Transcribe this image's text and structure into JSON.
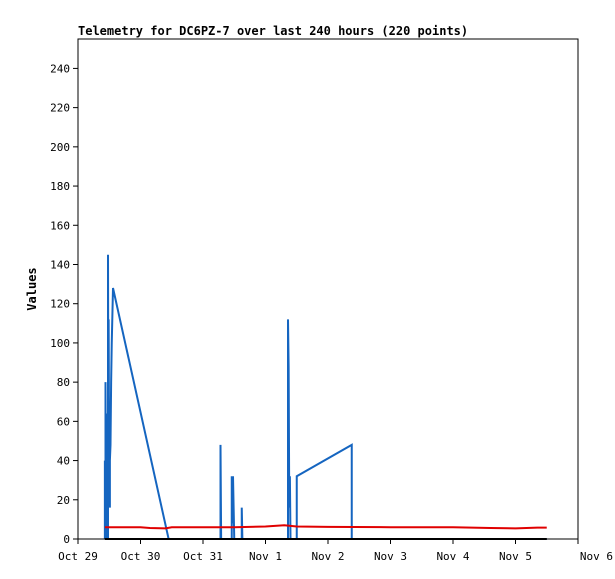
{
  "chart_data": {
    "type": "line",
    "title": "Telemetry for DC6PZ-7 over last 240 hours (220 points)",
    "ylabel": "Values",
    "xlabel": "",
    "xlim": [
      0,
      8
    ],
    "ylim": [
      0,
      255
    ],
    "x_ticks": [
      {
        "value": 0,
        "label": "Oct 29"
      },
      {
        "value": 1,
        "label": "Oct 30"
      },
      {
        "value": 2,
        "label": "Oct 31"
      },
      {
        "value": 3,
        "label": "Nov 1"
      },
      {
        "value": 4,
        "label": "Nov 2"
      },
      {
        "value": 5,
        "label": "Nov 3"
      },
      {
        "value": 6,
        "label": "Nov 4"
      },
      {
        "value": 7,
        "label": "Nov 5"
      },
      {
        "value": 8,
        "label": "Nov 6"
      }
    ],
    "y_ticks": [
      0,
      20,
      40,
      60,
      80,
      100,
      120,
      140,
      160,
      180,
      200,
      220,
      240
    ],
    "grid": false,
    "series": [
      {
        "color": "#1565c0",
        "points": [
          [
            0.43,
            0
          ],
          [
            0.43,
            40
          ],
          [
            0.44,
            0
          ],
          [
            0.44,
            80
          ],
          [
            0.45,
            0
          ],
          [
            0.45,
            64
          ],
          [
            0.46,
            0
          ],
          [
            0.46,
            40
          ],
          [
            0.47,
            0
          ],
          [
            0.47,
            64
          ],
          [
            0.48,
            0
          ],
          [
            0.48,
            145
          ],
          [
            0.49,
            16
          ],
          [
            0.49,
            112
          ],
          [
            0.5,
            24
          ],
          [
            0.5,
            48
          ],
          [
            0.51,
            16
          ],
          [
            0.51,
            40
          ],
          [
            0.52,
            48
          ],
          [
            0.53,
            80
          ],
          [
            0.54,
            100
          ],
          [
            0.56,
            128
          ],
          [
            1.45,
            0
          ],
          [
            2.28,
            0
          ],
          [
            2.28,
            48
          ],
          [
            2.29,
            0
          ],
          [
            2.46,
            0
          ],
          [
            2.46,
            32
          ],
          [
            2.48,
            8
          ],
          [
            2.48,
            32
          ],
          [
            2.5,
            0
          ],
          [
            2.62,
            0
          ],
          [
            2.62,
            16
          ],
          [
            2.63,
            0
          ],
          [
            3.36,
            0
          ],
          [
            3.36,
            112
          ],
          [
            3.37,
            88
          ],
          [
            3.38,
            16
          ],
          [
            3.39,
            32
          ],
          [
            3.4,
            0
          ],
          [
            3.5,
            0
          ],
          [
            3.5,
            32
          ],
          [
            4.38,
            48
          ],
          [
            4.38,
            0
          ],
          [
            7.5,
            0
          ]
        ]
      },
      {
        "color": "#e00000",
        "points": [
          [
            0.43,
            6
          ],
          [
            1.0,
            6
          ],
          [
            1.15,
            5.6
          ],
          [
            1.4,
            5.4
          ],
          [
            1.5,
            6
          ],
          [
            2.5,
            6
          ],
          [
            3.0,
            6.4
          ],
          [
            3.3,
            7
          ],
          [
            3.5,
            6.4
          ],
          [
            4.0,
            6.2
          ],
          [
            5.0,
            6
          ],
          [
            6.0,
            6
          ],
          [
            6.6,
            5.6
          ],
          [
            7.0,
            5.4
          ],
          [
            7.35,
            5.8
          ],
          [
            7.5,
            5.8
          ]
        ]
      },
      {
        "color": "#000000",
        "points": [
          [
            0.43,
            0
          ],
          [
            7.5,
            0
          ]
        ]
      }
    ]
  }
}
